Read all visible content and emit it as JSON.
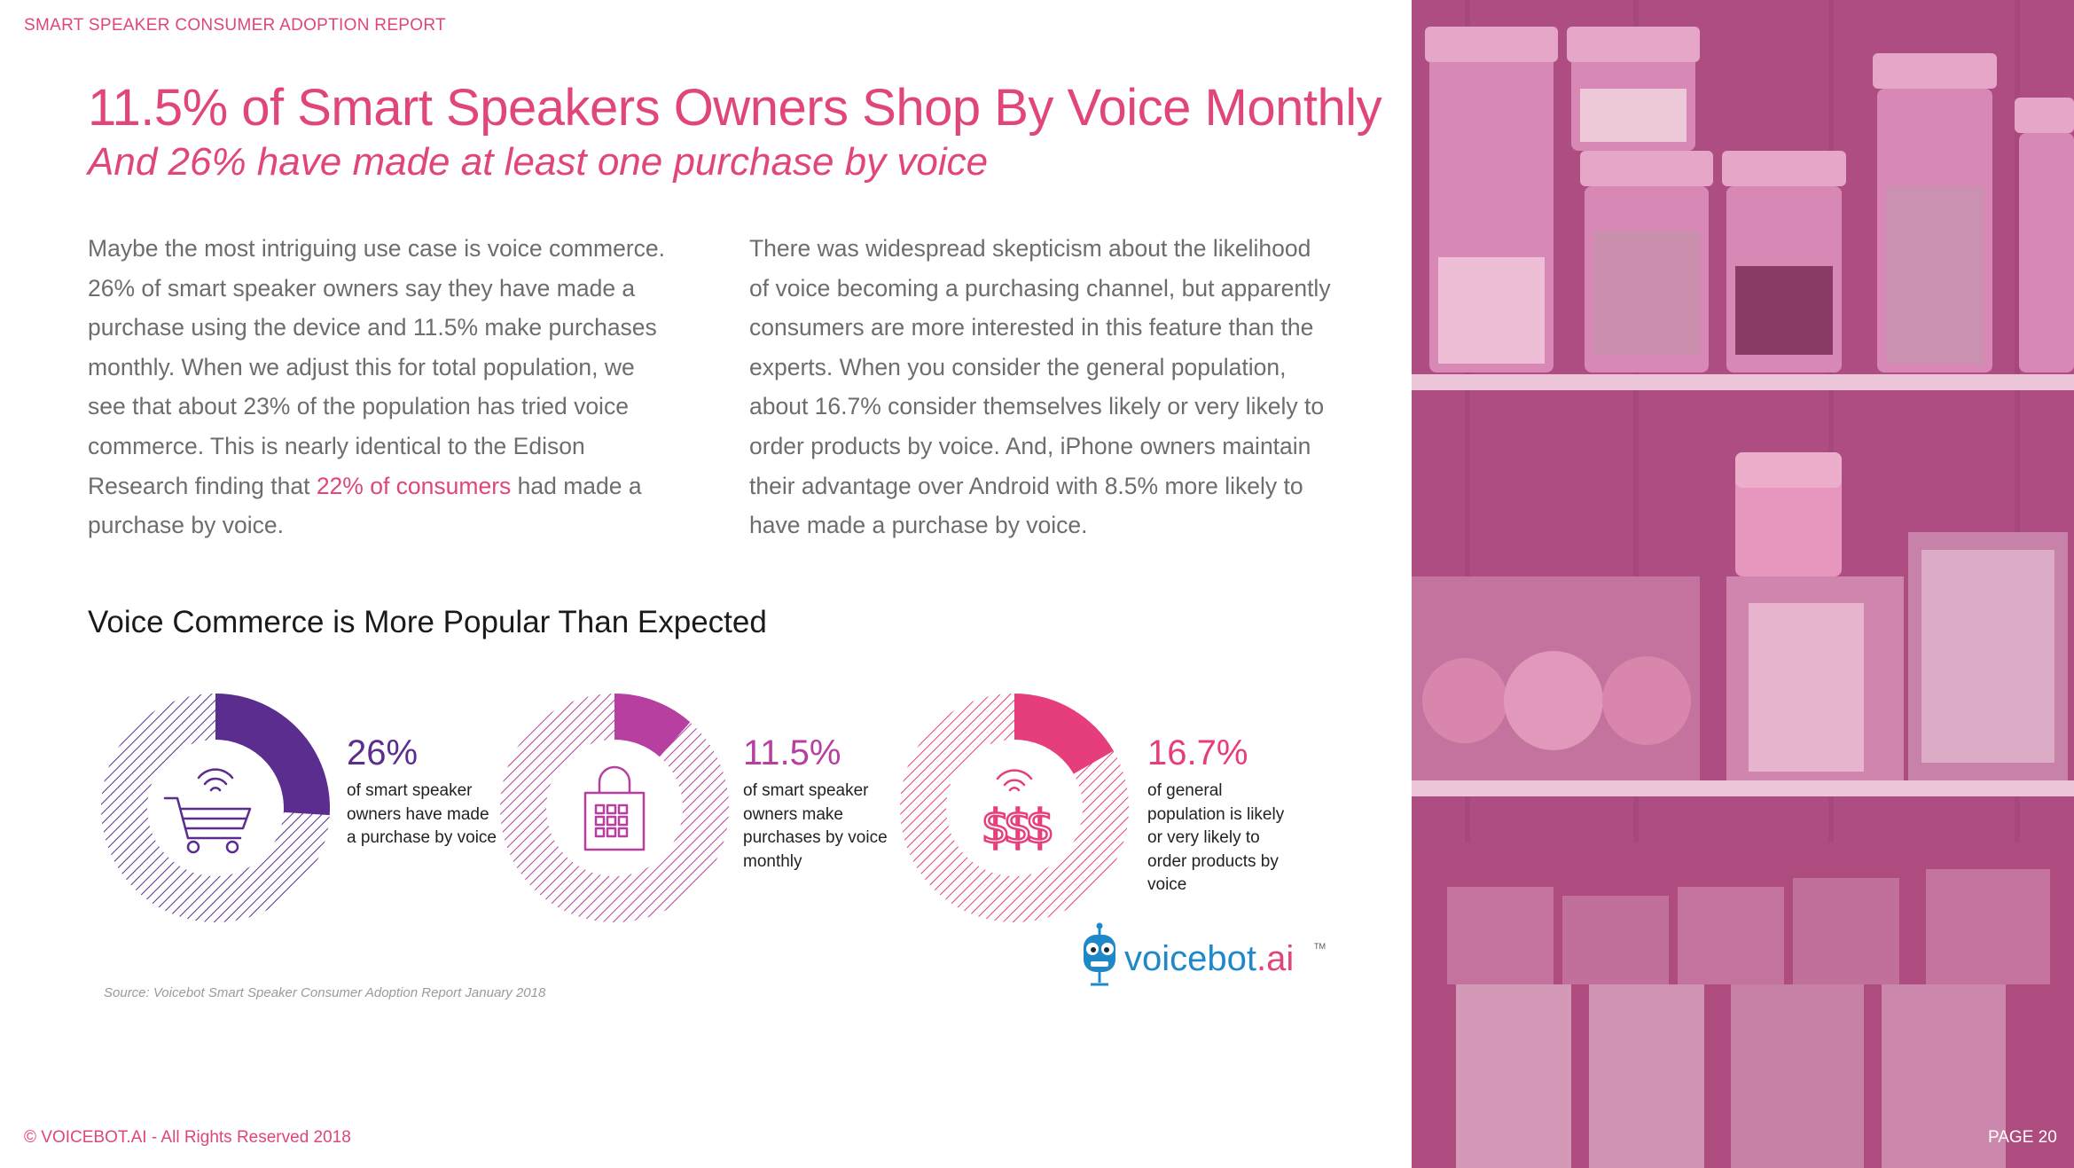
{
  "header": {
    "report_label": "SMART SPEAKER CONSUMER ADOPTION REPORT",
    "title": "11.5% of Smart Speakers Owners Shop By Voice Monthly",
    "subtitle": "And 26% have made at least one purchase by voice"
  },
  "body": {
    "left_paragraph_text": "Maybe the most intriguing use case is voice commerce. 26% of smart speaker owners say they have made a purchase using the device and 11.5% make purchases monthly. When we adjust this for total population, we see that about 23% of the population has tried voice commerce. This is nearly identical to the Edison Research finding that",
    "left_paragraph_link": "22% of consumers",
    "left_paragraph_tail": "had made a purchase by voice.",
    "right_paragraph": "There was widespread skepticism about the likelihood of voice becoming a purchasing channel, but apparently consumers are more interested in this feature than the experts. When you consider the general population, about 16.7% consider themselves likely or very likely to order products by voice.  And, iPhone owners maintain their advantage over Android with 8.5% more likely to have made a purchase by voice."
  },
  "section_heading": "Voice Commerce is More Popular Than Expected",
  "stats": [
    {
      "value_label": "26%",
      "description": "of smart speaker owners have made a purchase by voice",
      "fraction": 0.26,
      "color": "#5b2d8e",
      "icon": "shopping-cart-icon"
    },
    {
      "value_label": "11.5%",
      "description": "of smart speaker owners make purchases by voice monthly",
      "fraction": 0.115,
      "color": "#b73fa0",
      "icon": "shopping-bag-icon"
    },
    {
      "value_label": "16.7%",
      "description": "of general population is likely or very likely to order products by voice",
      "fraction": 0.167,
      "color": "#e63e7d",
      "icon": "dollar-signs-icon"
    }
  ],
  "source": "Source: Voicebot Smart Speaker Consumer Adoption Report January 2018",
  "logo": {
    "text_main": "voicebot",
    "text_suffix": ".ai",
    "trademark": "TM",
    "color_main": "#1e88c9",
    "color_suffix": "#e0457b"
  },
  "footer": {
    "copyright": "© VOICEBOT.AI - All Rights Reserved 2018",
    "page_number": "PAGE 20"
  },
  "colors": {
    "accent": "#e0457b",
    "photo_tint": "#d25a9c"
  }
}
